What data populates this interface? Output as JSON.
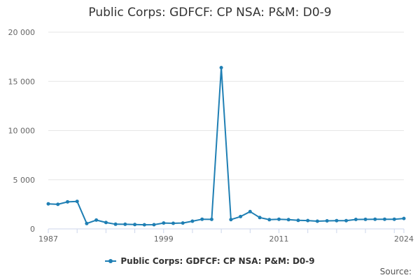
{
  "colors": {
    "series": "#1f7fb4",
    "grid": "#e6e6e6",
    "axis": "#ccd6eb"
  },
  "source_label": "Source:",
  "chart_data": {
    "type": "line",
    "title": "Public Corps: GDFCF: CP NSA: P&M: D0-9",
    "xlabel": "",
    "ylabel": "",
    "ylim": [
      0,
      20000
    ],
    "xlim": [
      1987,
      2024
    ],
    "yticks": [
      0,
      5000,
      10000,
      15000,
      20000
    ],
    "ytick_labels": [
      "0",
      "5 000",
      "10 000",
      "15 000",
      "20 000"
    ],
    "xticks_labeled": [
      1987,
      1999,
      2011,
      2024
    ],
    "grid": "horizontal",
    "legend": "bottom",
    "series": [
      {
        "name": "Public Corps: GDFCF: CP NSA: P&M: D0-9",
        "x": [
          1987,
          1988,
          1989,
          1990,
          1991,
          1992,
          1993,
          1994,
          1995,
          1996,
          1997,
          1998,
          1999,
          2000,
          2001,
          2002,
          2003,
          2004,
          2005,
          2006,
          2007,
          2008,
          2009,
          2010,
          2011,
          2012,
          2013,
          2014,
          2015,
          2016,
          2017,
          2018,
          2019,
          2020,
          2021,
          2022,
          2023,
          2024
        ],
        "values": [
          2550,
          2500,
          2750,
          2800,
          550,
          900,
          650,
          480,
          470,
          440,
          420,
          430,
          600,
          570,
          600,
          780,
          980,
          970,
          16400,
          950,
          1250,
          1760,
          1150,
          940,
          980,
          940,
          870,
          850,
          780,
          820,
          840,
          840,
          960,
          970,
          980,
          980,
          980,
          1060
        ]
      }
    ]
  }
}
